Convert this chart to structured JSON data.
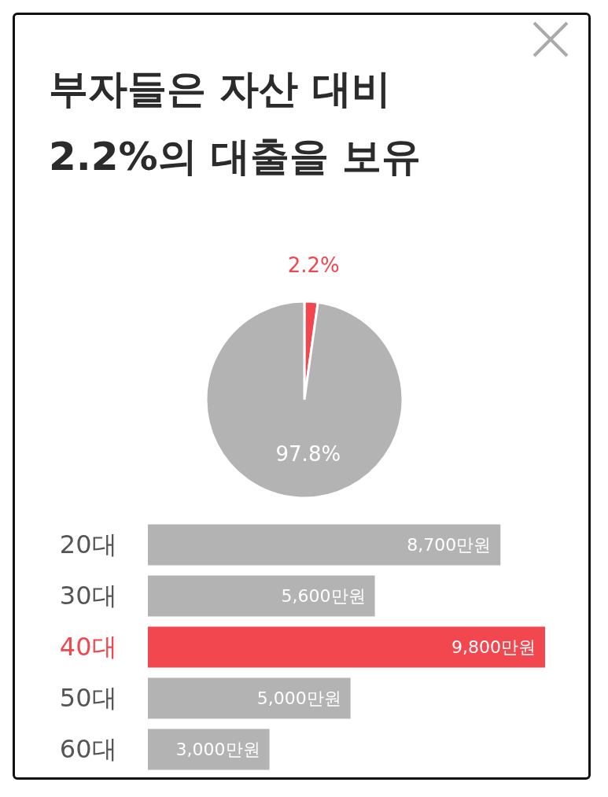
{
  "chart_data": [
    {
      "type": "pie",
      "title": "부자들은 자산 대비 2.2%의 대출을 보유",
      "categories": [
        null,
        null
      ],
      "values": [
        2.2,
        97.8
      ],
      "colors": [
        "#f2474f",
        "#b3b3b3"
      ],
      "value_labels": [
        "2.2%",
        "97.8%"
      ]
    },
    {
      "type": "bar",
      "orientation": "horizontal",
      "categories": [
        "20대",
        "30대",
        "40대",
        "50대",
        "60대"
      ],
      "values": [
        8700,
        5600,
        9800,
        5000,
        3000
      ],
      "colors": [
        "#b3b3b3",
        "#b3b3b3",
        "#f2474f",
        "#b3b3b3",
        "#b3b3b3"
      ],
      "value_labels": [
        "8,700만원",
        "5,600만원",
        "9,800만원",
        "5,000만원",
        "3,000만원"
      ]
    }
  ]
}
